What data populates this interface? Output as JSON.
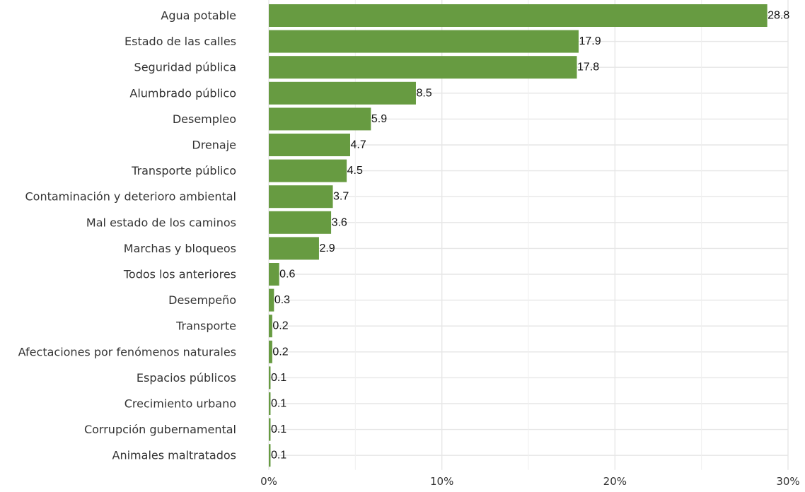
{
  "chart_data": {
    "type": "bar",
    "orientation": "horizontal",
    "title": "",
    "xlabel": "",
    "ylabel": "",
    "categories": [
      "Agua potable",
      "Estado de las calles",
      "Seguridad pública",
      "Alumbrado público",
      "Desempleo",
      "Drenaje",
      "Transporte público",
      "Contaminación y deterioro ambiental",
      "Mal estado de los caminos",
      "Marchas y bloqueos",
      "Todos los anteriores",
      "Desempeño",
      "Transporte",
      "Afectaciones por fenómenos naturales",
      "Espacios públicos",
      "Crecimiento urbano",
      "Corrupción gubernamental",
      "Animales maltratados"
    ],
    "values": [
      28.8,
      17.9,
      17.8,
      8.5,
      5.9,
      4.7,
      4.5,
      3.7,
      3.6,
      2.9,
      0.6,
      0.3,
      0.2,
      0.2,
      0.1,
      0.1,
      0.1,
      0.1
    ],
    "value_labels": [
      "28.8",
      "17.9",
      "17.8",
      "8.5",
      "5.9",
      "4.7",
      "4.5",
      "3.7",
      "3.6",
      "2.9",
      "0.6",
      "0.3",
      "0.2",
      "0.2",
      "0.1",
      "0.1",
      "0.1",
      "0.1"
    ],
    "xlim": [
      0,
      30
    ],
    "x_ticks": [
      0,
      10,
      20,
      30
    ],
    "x_tick_labels": [
      "0%",
      "10%",
      "20%",
      "30%"
    ],
    "grid": true,
    "legend": "none",
    "bar_color": "#679b41"
  }
}
